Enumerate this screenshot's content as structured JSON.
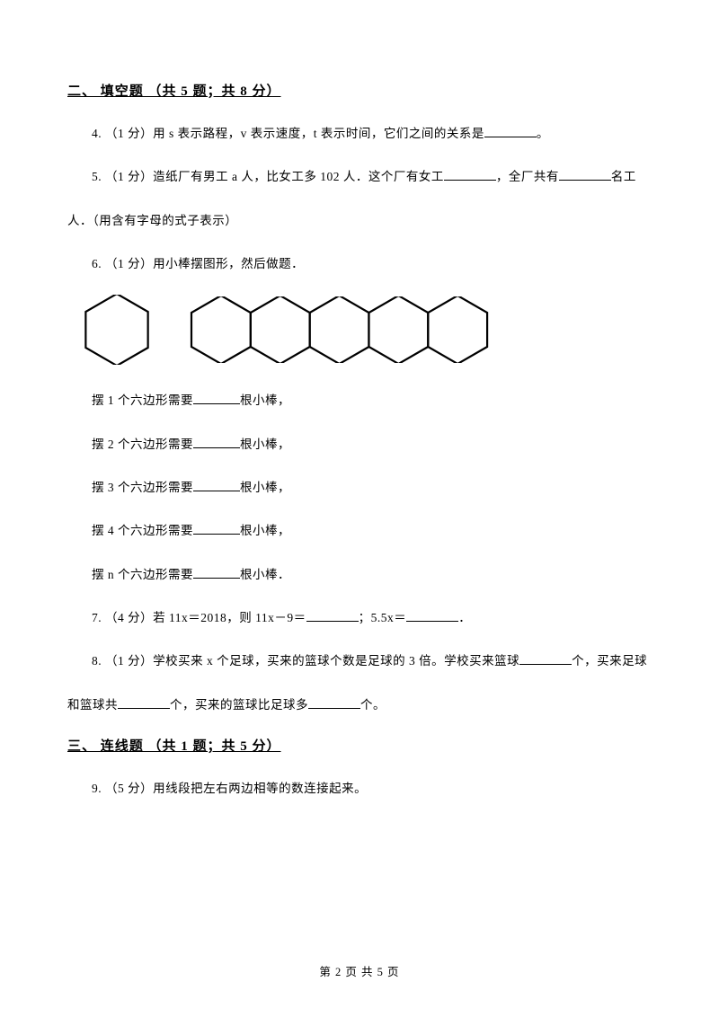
{
  "section2": {
    "heading": "二、 填空题 （共 5 题；共 8 分）",
    "q4": {
      "prefix": "4. （1 分）用 s 表示路程，v 表示速度，t 表示时间，它们之间的关系是",
      "suffix": "。"
    },
    "q5": {
      "part1": "5.  （1 分）造纸厂有男工 a 人，比女工多 102 人．这个厂有女工",
      "part2": "，全厂共有",
      "part3": "名工",
      "cont": "人．（用含有字母的式子表示）"
    },
    "q6": {
      "intro": "6. （1 分）用小棒摆图形，然后做题．",
      "line1_pre": "摆 1 个六边形需要",
      "line1_post": "根小棒，",
      "line2_pre": "摆 2 个六边形需要",
      "line2_post": "根小棒，",
      "line3_pre": "摆 3 个六边形需要",
      "line3_post": "根小棒，",
      "line4_pre": "摆 4 个六边形需要",
      "line4_post": "根小棒，",
      "line5_pre": "摆 n 个六边形需要",
      "line5_post": "根小棒．"
    },
    "q7": {
      "p1": "7. （4 分）若 11x＝2018，则 11x－9＝",
      "p2": "；5.5x＝",
      "p3": "．"
    },
    "q8": {
      "p1": "8. （1 分）学校买来 x 个足球，买来的篮球个数是足球的 3 倍。学校买来篮球",
      "p2": "个，买来足球",
      "c1": "和篮球共",
      "c2": "个，买来的篮球比足球多",
      "c3": "个。"
    }
  },
  "section3": {
    "heading": "三、 连线题 （共 1 题；共 5 分）",
    "q9": "9. （5 分）用线段把左右两边相等的数连接起来。"
  },
  "footer": "第 2 页 共 5 页",
  "hexagon_style": {
    "stroke": "#000000",
    "stroke_width": 2.2,
    "fill": "none",
    "single_radius": 40,
    "chain_radius": 38,
    "chain_count": 5
  }
}
